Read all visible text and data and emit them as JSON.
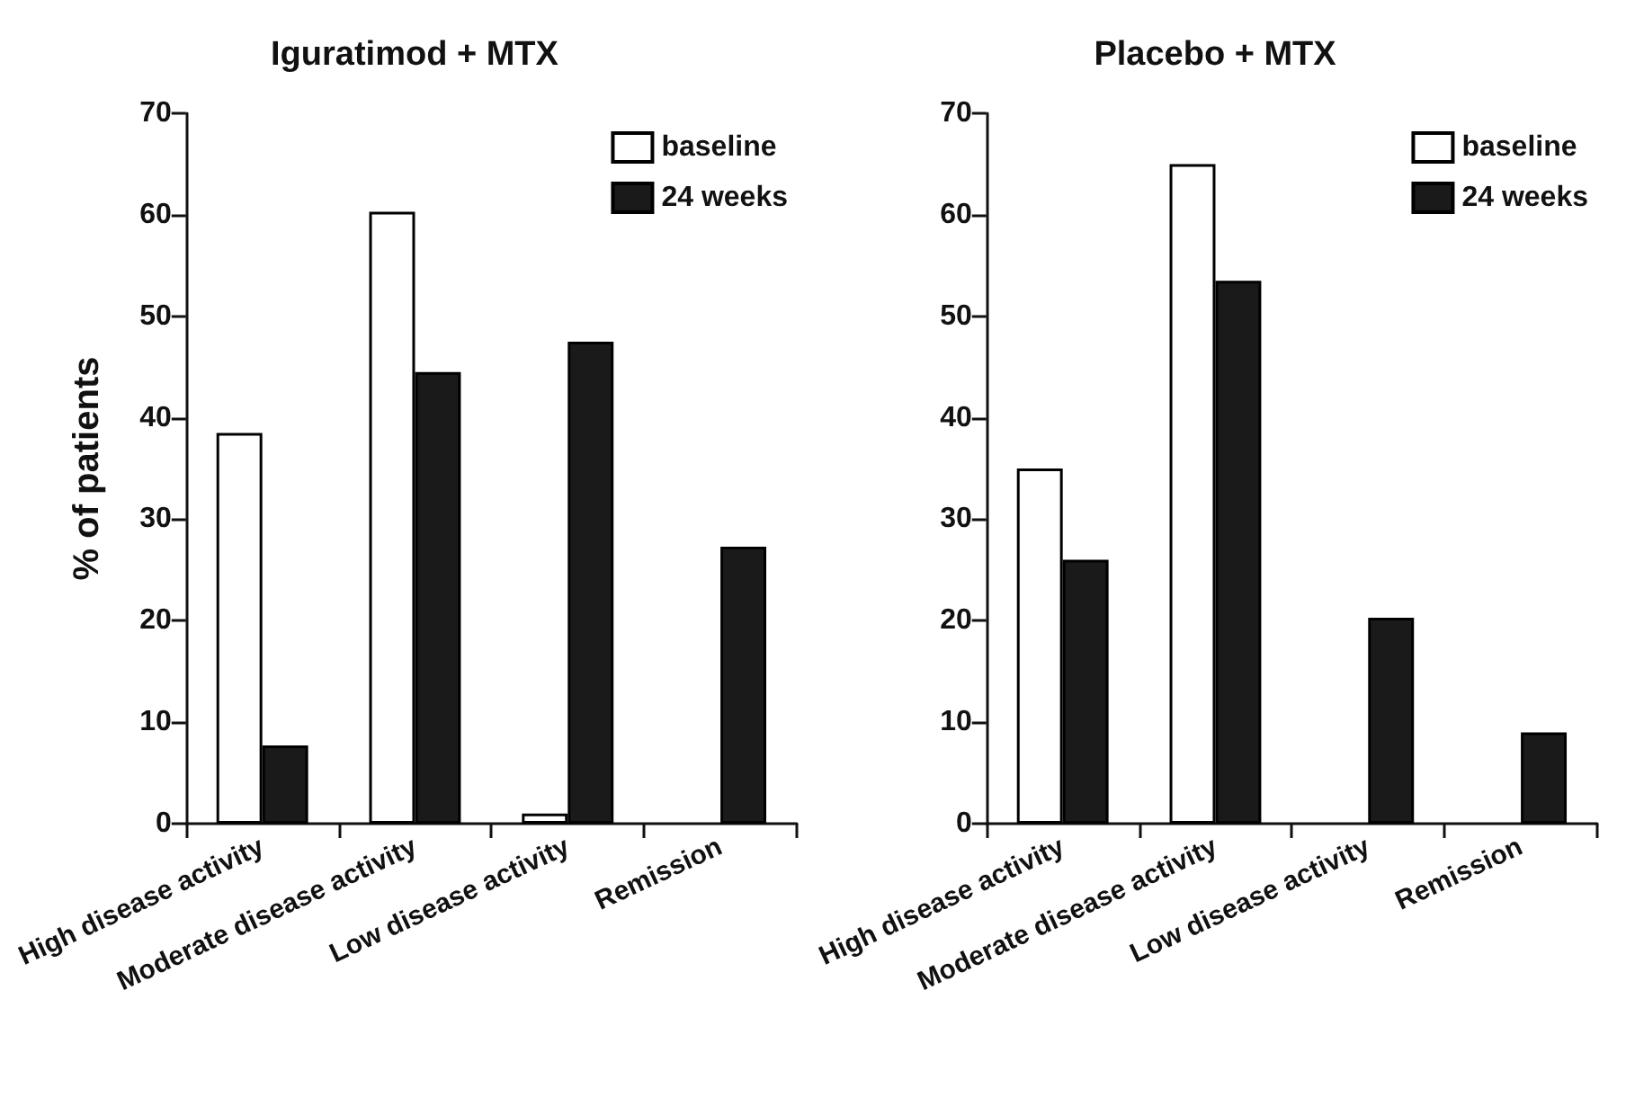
{
  "chart_data": [
    {
      "type": "bar",
      "title": "Iguratimod + MTX",
      "ylabel": "% of patients",
      "categories": [
        "High disease activity",
        "Moderate disease activity",
        "Low disease activity",
        "Remission"
      ],
      "series": [
        {
          "name": "baseline",
          "color": "#ffffff",
          "values": [
            38.5,
            60.3,
            1,
            0
          ]
        },
        {
          "name": "24 weeks",
          "color": "#1a1a1a",
          "values": [
            7.7,
            44.5,
            47.5,
            27.3
          ]
        }
      ],
      "ylim": [
        0,
        70
      ],
      "yticks": [
        0,
        10,
        20,
        30,
        40,
        50,
        60,
        70
      ],
      "grid": false,
      "legend": "top right"
    },
    {
      "type": "bar",
      "title": "Placebo + MTX",
      "categories": [
        "High disease activity",
        "Moderate disease activity",
        "Low disease activity",
        "Remission"
      ],
      "series": [
        {
          "name": "baseline",
          "color": "#ffffff",
          "values": [
            35,
            65,
            0,
            0
          ]
        },
        {
          "name": "24 weeks",
          "color": "#1a1a1a",
          "values": [
            26,
            53.5,
            20.3,
            9
          ]
        }
      ],
      "ylim": [
        0,
        70
      ],
      "yticks": [
        0,
        10,
        20,
        30,
        40,
        50,
        60,
        70
      ],
      "grid": false,
      "legend": "top right"
    }
  ]
}
